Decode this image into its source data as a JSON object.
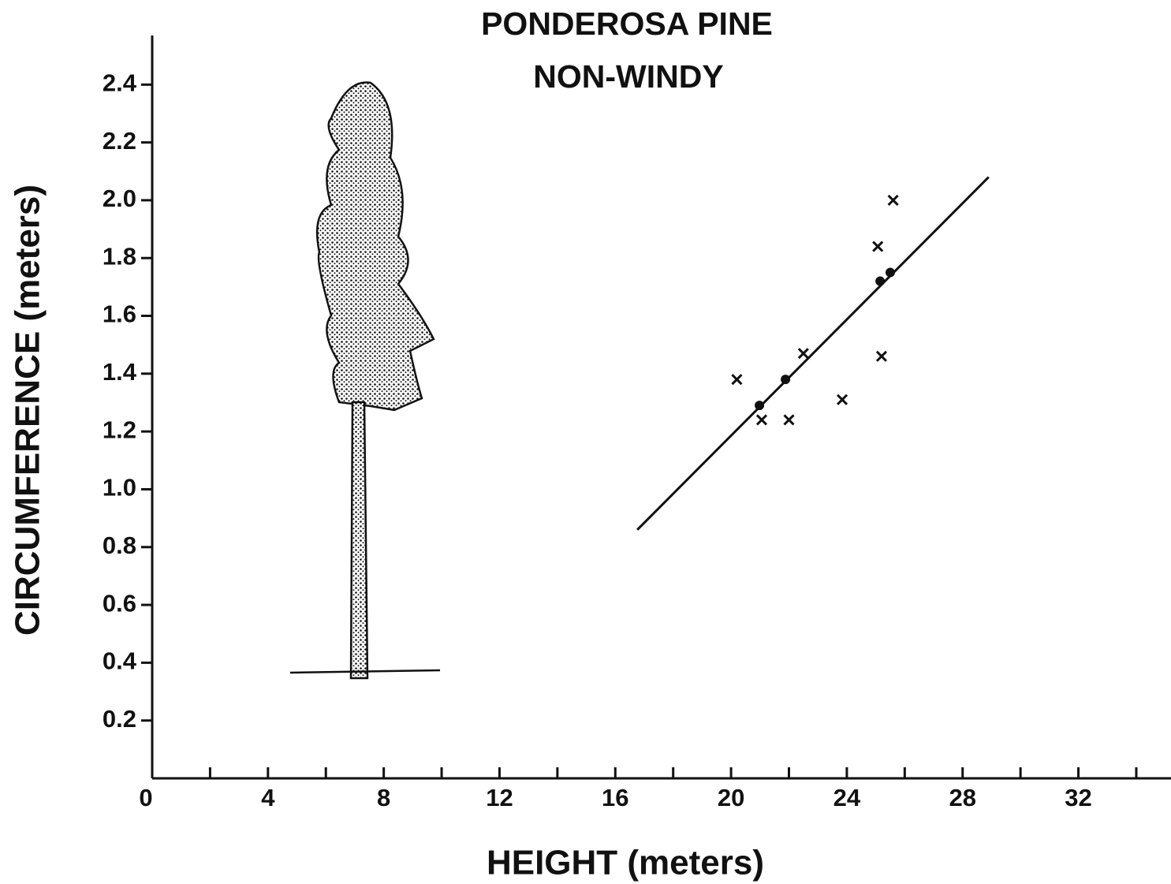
{
  "chart_data": {
    "type": "scatter",
    "title": [
      "PONDEROSA PINE",
      "NON-WINDY"
    ],
    "x_label": "HEIGHT (meters)",
    "y_label": "CIRCUMFERENCE (meters)",
    "xlim": [
      0,
      35.2
    ],
    "ylim": [
      0,
      2.57
    ],
    "xticks": [
      0,
      4,
      8,
      12,
      16,
      20,
      24,
      28,
      32
    ],
    "xminorticks": [
      2,
      6,
      10,
      14,
      18,
      22,
      26,
      30,
      34
    ],
    "yticks": [
      0.2,
      0.4,
      0.6,
      0.8,
      {
        "value": 1,
        "label": "1.0"
      },
      1.2,
      1.4,
      1.6,
      1.8,
      {
        "value": 2,
        "label": "2.0"
      },
      2.2,
      2.4
    ],
    "color": "#111111",
    "series": [
      {
        "marker": "x",
        "x": [
          20.2,
          21.06,
          22.0,
          22.5,
          23.84,
          25.07,
          25.2,
          25.6
        ],
        "values": [
          1.38,
          1.24,
          1.24,
          1.47,
          1.31,
          1.84,
          1.46,
          2.0
        ]
      },
      {
        "marker": "dot",
        "x": [
          20.98,
          21.88,
          25.15,
          25.5
        ],
        "values": [
          1.29,
          1.38,
          1.72,
          1.75
        ]
      },
      {
        "marker": "line",
        "x": [
          16.76,
          28.9
        ],
        "values": [
          0.86,
          2.08
        ]
      }
    ]
  }
}
